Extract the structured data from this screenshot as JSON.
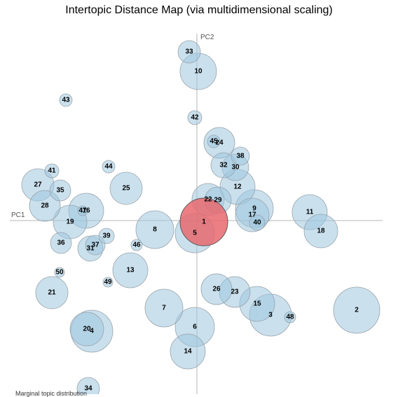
{
  "title": "Intertopic Distance Map (via multidimensional scaling)",
  "footer_note": "Marginal topic distribution",
  "colors": {
    "topic_fill": "#9ec6df",
    "selected_fill": "#e8686f",
    "selected_stroke": "#5a5a5a"
  },
  "chart_data": {
    "type": "scatter",
    "title": "Intertopic Distance Map (via multidimensional scaling)",
    "xlabel": "PC1",
    "ylabel": "PC2",
    "xlim": [
      -265,
      265
    ],
    "ylim": [
      -250,
      265
    ],
    "grid": false,
    "selected_topic": "1",
    "points": [
      {
        "label": "1",
        "x": 10,
        "y": -2,
        "size": 34
      },
      {
        "label": "2",
        "x": 228,
        "y": -128,
        "size": 33
      },
      {
        "label": "3",
        "x": 105,
        "y": -135,
        "size": 30
      },
      {
        "label": "4",
        "x": -150,
        "y": -158,
        "size": 30
      },
      {
        "label": "5",
        "x": -3,
        "y": -18,
        "size": 28
      },
      {
        "label": "6",
        "x": -3,
        "y": -152,
        "size": 28
      },
      {
        "label": "7",
        "x": -47,
        "y": -125,
        "size": 27
      },
      {
        "label": "8",
        "x": -60,
        "y": -13,
        "size": 27
      },
      {
        "label": "9",
        "x": 82,
        "y": 17,
        "size": 27
      },
      {
        "label": "10",
        "x": 2,
        "y": 213,
        "size": 26
      },
      {
        "label": "11",
        "x": 161,
        "y": 12,
        "size": 25
      },
      {
        "label": "12",
        "x": 58,
        "y": 48,
        "size": 25
      },
      {
        "label": "13",
        "x": -95,
        "y": -71,
        "size": 25
      },
      {
        "label": "14",
        "x": -13,
        "y": -187,
        "size": 25
      },
      {
        "label": "15",
        "x": 86,
        "y": -119,
        "size": 25
      },
      {
        "label": "16",
        "x": -158,
        "y": 14,
        "size": 25
      },
      {
        "label": "17",
        "x": 79,
        "y": 8,
        "size": 24
      },
      {
        "label": "18",
        "x": 177,
        "y": -15,
        "size": 24
      },
      {
        "label": "19",
        "x": -181,
        "y": -2,
        "size": 24
      },
      {
        "label": "20",
        "x": -157,
        "y": -155,
        "size": 24
      },
      {
        "label": "21",
        "x": -207,
        "y": -103,
        "size": 23
      },
      {
        "label": "22",
        "x": 16,
        "y": 30,
        "size": 23
      },
      {
        "label": "23",
        "x": 54,
        "y": -102,
        "size": 22
      },
      {
        "label": "24",
        "x": 32,
        "y": 111,
        "size": 22
      },
      {
        "label": "25",
        "x": -101,
        "y": 46,
        "size": 23
      },
      {
        "label": "26",
        "x": 28,
        "y": -98,
        "size": 22
      },
      {
        "label": "27",
        "x": -227,
        "y": 51,
        "size": 23
      },
      {
        "label": "28",
        "x": -217,
        "y": 21,
        "size": 22
      },
      {
        "label": "29",
        "x": 30,
        "y": 29,
        "size": 19
      },
      {
        "label": "30",
        "x": 55,
        "y": 76,
        "size": 19
      },
      {
        "label": "31",
        "x": -152,
        "y": -40,
        "size": 18
      },
      {
        "label": "32",
        "x": 38,
        "y": 79,
        "size": 18
      },
      {
        "label": "33",
        "x": -11,
        "y": 241,
        "size": 16
      },
      {
        "label": "34",
        "x": -155,
        "y": -240,
        "size": 16
      },
      {
        "label": "35",
        "x": -195,
        "y": 43,
        "size": 15
      },
      {
        "label": "36",
        "x": -194,
        "y": -32,
        "size": 15
      },
      {
        "label": "37",
        "x": -145,
        "y": -35,
        "size": 14
      },
      {
        "label": "38",
        "x": 62,
        "y": 92,
        "size": 13
      },
      {
        "label": "39",
        "x": -129,
        "y": -22,
        "size": 11
      },
      {
        "label": "40",
        "x": 86,
        "y": -3,
        "size": 11
      },
      {
        "label": "41",
        "x": -207,
        "y": 71,
        "size": 10
      },
      {
        "label": "42",
        "x": -3,
        "y": 147,
        "size": 10
      },
      {
        "label": "43",
        "x": -187,
        "y": 172,
        "size": 9
      },
      {
        "label": "44",
        "x": -126,
        "y": 77,
        "size": 9
      },
      {
        "label": "45",
        "x": 24,
        "y": 113,
        "size": 9
      },
      {
        "label": "46",
        "x": -86,
        "y": -35,
        "size": 8
      },
      {
        "label": "47",
        "x": -163,
        "y": 14,
        "size": 7
      },
      {
        "label": "48",
        "x": 133,
        "y": -138,
        "size": 8
      },
      {
        "label": "49",
        "x": -127,
        "y": -88,
        "size": 7
      },
      {
        "label": "50",
        "x": -196,
        "y": -74,
        "size": 7
      }
    ]
  }
}
